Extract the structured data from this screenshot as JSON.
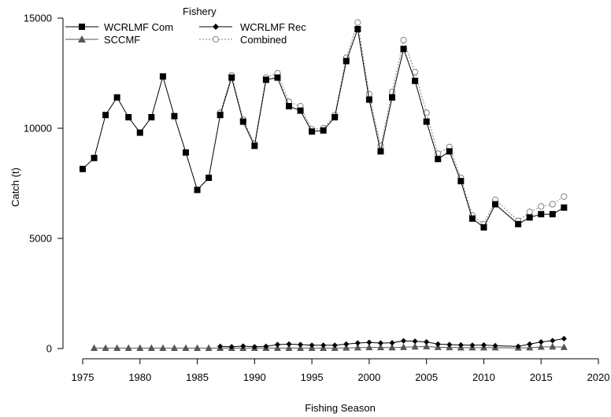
{
  "chart_data": {
    "type": "line",
    "title": "",
    "xlabel": "Fishing Season",
    "ylabel": "Catch (t)",
    "xlim": [
      1975,
      2020
    ],
    "ylim": [
      0,
      15000
    ],
    "xticks": [
      1975,
      1980,
      1985,
      1990,
      1995,
      2000,
      2005,
      2010,
      2015,
      2020
    ],
    "yticks": [
      0,
      5000,
      10000,
      15000
    ],
    "grid": false,
    "legend": {
      "title": "Fishery",
      "placement": "top-left"
    },
    "series": [
      {
        "name": "WCRLMF Com",
        "marker": "square",
        "line": "solid",
        "color": "#000000",
        "x": [
          1975,
          1976,
          1977,
          1978,
          1979,
          1980,
          1981,
          1982,
          1983,
          1984,
          1985,
          1986,
          1987,
          1988,
          1989,
          1990,
          1991,
          1992,
          1993,
          1994,
          1995,
          1996,
          1997,
          1998,
          1999,
          2000,
          2001,
          2002,
          2003,
          2004,
          2005,
          2006,
          2007,
          2008,
          2009,
          2010,
          2011,
          2013,
          2014,
          2015,
          2016,
          2017
        ],
        "y": [
          8150,
          8650,
          10600,
          11400,
          10500,
          9800,
          10500,
          12350,
          10550,
          8900,
          7200,
          7750,
          10600,
          12300,
          10300,
          9200,
          12200,
          12300,
          11000,
          10800,
          9850,
          9900,
          10500,
          13050,
          14500,
          11300,
          8950,
          11400,
          13600,
          12150,
          10300,
          8600,
          8950,
          7600,
          5900,
          5500,
          6550,
          5650,
          5950,
          6100,
          6100,
          6400
        ]
      },
      {
        "name": "WCRLMF Rec",
        "marker": "diamond",
        "line": "solid",
        "color": "#000000",
        "x": [
          1987,
          1988,
          1989,
          1990,
          1991,
          1992,
          1993,
          1994,
          1995,
          1996,
          1997,
          1998,
          1999,
          2000,
          2001,
          2002,
          2003,
          2004,
          2005,
          2006,
          2007,
          2008,
          2009,
          2010,
          2011,
          2013,
          2014,
          2015,
          2016,
          2017
        ],
        "y": [
          100,
          80,
          110,
          80,
          100,
          180,
          200,
          180,
          150,
          150,
          150,
          200,
          250,
          280,
          250,
          260,
          350,
          330,
          300,
          200,
          180,
          160,
          150,
          160,
          130,
          100,
          200,
          300,
          360,
          450
        ]
      },
      {
        "name": "SCCMF",
        "marker": "triangle",
        "line": "solid",
        "color": "#555555",
        "x": [
          1976,
          1977,
          1978,
          1979,
          1980,
          1981,
          1982,
          1983,
          1984,
          1985,
          1986,
          1987,
          1988,
          1989,
          1990,
          1991,
          1992,
          1993,
          1994,
          1995,
          1996,
          1997,
          1998,
          1999,
          2000,
          2001,
          2002,
          2003,
          2004,
          2005,
          2006,
          2007,
          2008,
          2009,
          2010,
          2011,
          2013,
          2014,
          2015,
          2016,
          2017
        ],
        "y": [
          20,
          20,
          20,
          20,
          20,
          20,
          20,
          20,
          20,
          20,
          20,
          20,
          20,
          20,
          20,
          20,
          20,
          20,
          20,
          20,
          20,
          20,
          30,
          40,
          50,
          50,
          40,
          60,
          80,
          90,
          60,
          50,
          40,
          40,
          40,
          40,
          30,
          40,
          70,
          80,
          60
        ]
      },
      {
        "name": "Combined",
        "marker": "open-circle",
        "line": "dotted",
        "color": "#808080",
        "x": [
          1987,
          1988,
          1989,
          1990,
          1991,
          1992,
          1993,
          1994,
          1995,
          1996,
          1997,
          1998,
          1999,
          2000,
          2001,
          2002,
          2003,
          2004,
          2005,
          2006,
          2007,
          2008,
          2009,
          2010,
          2011,
          2013,
          2014,
          2015,
          2016,
          2017
        ],
        "y": [
          10700,
          12400,
          10400,
          9300,
          12300,
          12500,
          11200,
          11000,
          9950,
          10000,
          10600,
          13200,
          14800,
          11550,
          9200,
          11650,
          14000,
          12550,
          10700,
          8850,
          9150,
          7750,
          6050,
          5650,
          6750,
          5800,
          6200,
          6450,
          6550,
          6900
        ]
      }
    ]
  }
}
